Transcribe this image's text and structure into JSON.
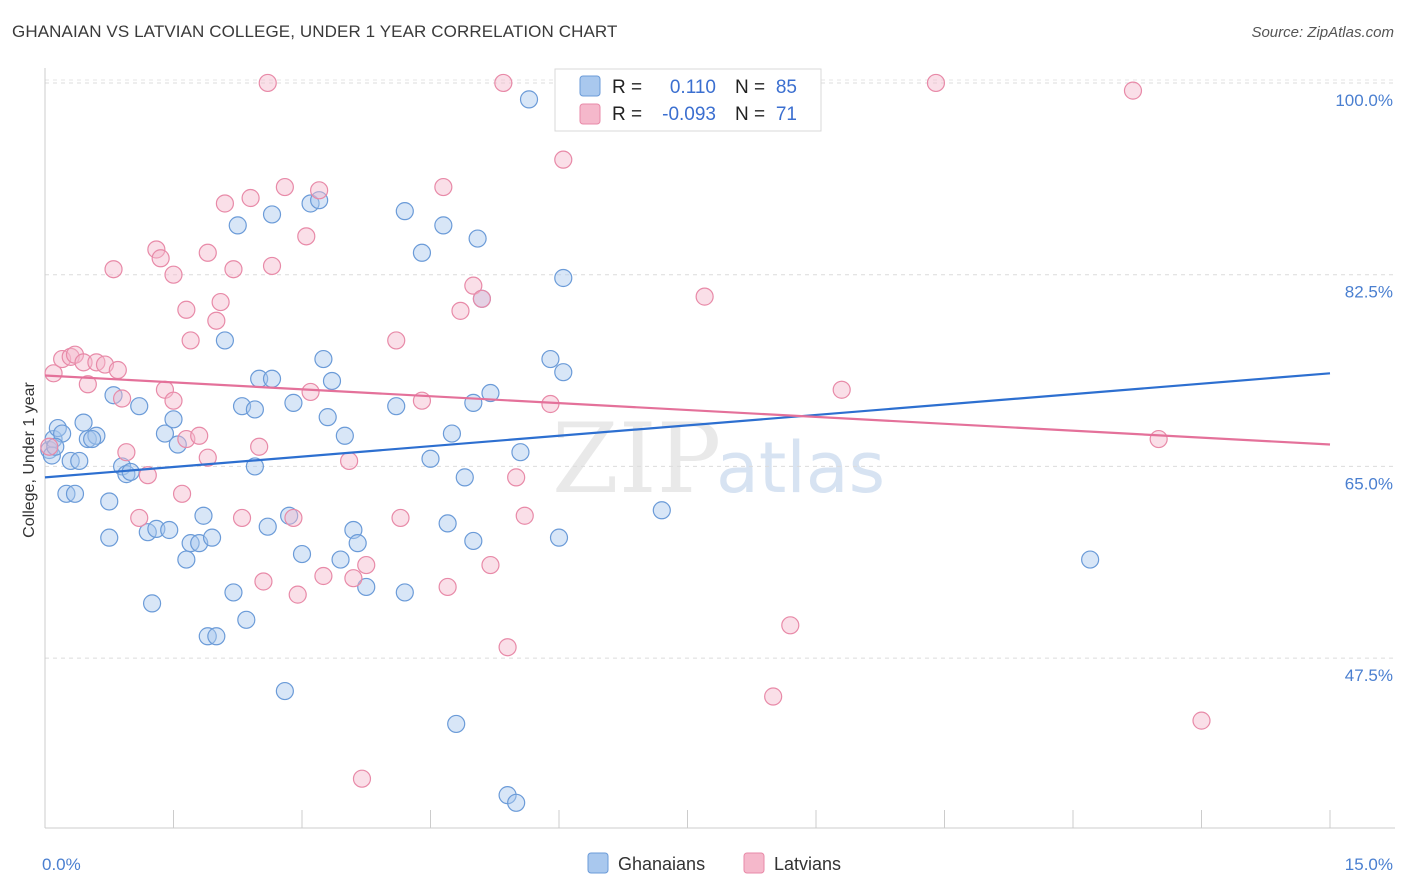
{
  "header": {
    "title": "GHANAIAN VS LATVIAN COLLEGE, UNDER 1 YEAR CORRELATION CHART",
    "source": "Source: ZipAtlas.com"
  },
  "legend_top": {
    "rows": [
      {
        "r_label": "R =",
        "r_value": "0.110",
        "n_label": "N =",
        "n_value": "85",
        "color": "#a9c8ee"
      },
      {
        "r_label": "R =",
        "r_value": "-0.093",
        "n_label": "N =",
        "n_value": "71",
        "color": "#f5b8cb"
      }
    ]
  },
  "legend_bottom": [
    {
      "label": "Ghanaians",
      "color": "#a9c8ee"
    },
    {
      "label": "Latvians",
      "color": "#f5b8cb"
    }
  ],
  "watermark": {
    "zip": "ZIP",
    "atlas": "atlas"
  },
  "chart_data": {
    "type": "scatter",
    "title": "GHANAIAN VS LATVIAN COLLEGE, UNDER 1 YEAR CORRELATION CHART",
    "xlabel": "",
    "ylabel": "College, Under 1 year",
    "xlim": [
      0,
      15
    ],
    "ylim": [
      32,
      101
    ],
    "x_ticks": [
      "0.0%",
      "15.0%"
    ],
    "y_ticks": [
      {
        "value": 47.5,
        "label": "47.5%"
      },
      {
        "value": 65.0,
        "label": "65.0%"
      },
      {
        "value": 82.5,
        "label": "82.5%"
      },
      {
        "value": 100.0,
        "label": "100.0%"
      }
    ],
    "grid": true,
    "legend_placement": "top-center",
    "series": [
      {
        "name": "Ghanaians",
        "color": "#a9c8ee",
        "stroke": "#6b9bd8",
        "trend": {
          "x": [
            0,
            15
          ],
          "y": [
            64.0,
            73.5
          ],
          "color": "#2d6fd0"
        },
        "points": [
          [
            0.05,
            66.5
          ],
          [
            0.1,
            67.5
          ],
          [
            0.15,
            68.5
          ],
          [
            0.2,
            68.0
          ],
          [
            0.25,
            62.5
          ],
          [
            0.3,
            65.5
          ],
          [
            0.4,
            65.5
          ],
          [
            0.45,
            69.0
          ],
          [
            0.5,
            67.5
          ],
          [
            0.6,
            67.8
          ],
          [
            0.75,
            61.8
          ],
          [
            0.8,
            71.5
          ],
          [
            0.9,
            65.0
          ],
          [
            0.95,
            64.3
          ],
          [
            0.75,
            58.5
          ],
          [
            1.1,
            70.5
          ],
          [
            1.2,
            59.0
          ],
          [
            1.25,
            52.5
          ],
          [
            1.3,
            59.3
          ],
          [
            1.4,
            68.0
          ],
          [
            1.45,
            59.2
          ],
          [
            1.5,
            69.3
          ],
          [
            1.55,
            67.0
          ],
          [
            1.65,
            56.5
          ],
          [
            1.7,
            58.0
          ],
          [
            1.8,
            58.0
          ],
          [
            1.85,
            60.5
          ],
          [
            1.9,
            49.5
          ],
          [
            1.95,
            58.5
          ],
          [
            2.0,
            49.5
          ],
          [
            2.1,
            76.5
          ],
          [
            2.2,
            53.5
          ],
          [
            2.25,
            87.0
          ],
          [
            2.3,
            70.5
          ],
          [
            2.35,
            51.0
          ],
          [
            2.45,
            70.2
          ],
          [
            2.45,
            65.0
          ],
          [
            2.5,
            73.0
          ],
          [
            2.6,
            59.5
          ],
          [
            2.65,
            73.0
          ],
          [
            2.65,
            88.0
          ],
          [
            2.8,
            44.5
          ],
          [
            2.85,
            60.5
          ],
          [
            2.9,
            70.8
          ],
          [
            3.0,
            57.0
          ],
          [
            3.1,
            89.0
          ],
          [
            3.2,
            89.3
          ],
          [
            3.25,
            74.8
          ],
          [
            3.3,
            69.5
          ],
          [
            3.35,
            72.8
          ],
          [
            3.45,
            56.5
          ],
          [
            3.5,
            67.8
          ],
          [
            3.6,
            59.2
          ],
          [
            3.65,
            58.0
          ],
          [
            3.75,
            54.0
          ],
          [
            4.1,
            70.5
          ],
          [
            4.2,
            88.3
          ],
          [
            4.2,
            53.5
          ],
          [
            4.4,
            84.5
          ],
          [
            4.5,
            65.7
          ],
          [
            4.65,
            87.0
          ],
          [
            4.7,
            59.8
          ],
          [
            4.75,
            68.0
          ],
          [
            4.8,
            41.5
          ],
          [
            4.9,
            64.0
          ],
          [
            5.0,
            58.2
          ],
          [
            5.0,
            70.8
          ],
          [
            5.05,
            85.8
          ],
          [
            5.1,
            80.3
          ],
          [
            5.2,
            71.7
          ],
          [
            5.4,
            35.0
          ],
          [
            5.5,
            34.3
          ],
          [
            5.55,
            66.3
          ],
          [
            5.65,
            98.5
          ],
          [
            5.9,
            74.8
          ],
          [
            6.0,
            58.5
          ],
          [
            6.05,
            73.6
          ],
          [
            6.05,
            82.2
          ],
          [
            7.2,
            61.0
          ],
          [
            12.2,
            56.5
          ],
          [
            0.08,
            66.0
          ],
          [
            0.12,
            66.8
          ],
          [
            0.35,
            62.5
          ],
          [
            1.0,
            64.5
          ],
          [
            0.55,
            67.5
          ]
        ]
      },
      {
        "name": "Latvians",
        "color": "#f5b8cb",
        "stroke": "#e88aa8",
        "trend": {
          "x": [
            0,
            15
          ],
          "y": [
            73.3,
            67.0
          ],
          "color": "#e4719a"
        },
        "points": [
          [
            0.05,
            66.8
          ],
          [
            0.1,
            73.5
          ],
          [
            0.2,
            74.8
          ],
          [
            0.3,
            75.0
          ],
          [
            0.35,
            75.2
          ],
          [
            0.45,
            74.5
          ],
          [
            0.5,
            72.5
          ],
          [
            0.6,
            74.5
          ],
          [
            0.7,
            74.3
          ],
          [
            0.8,
            83.0
          ],
          [
            0.85,
            73.8
          ],
          [
            0.9,
            71.2
          ],
          [
            0.95,
            66.3
          ],
          [
            1.1,
            60.3
          ],
          [
            1.2,
            64.2
          ],
          [
            1.3,
            84.8
          ],
          [
            1.35,
            84.0
          ],
          [
            1.4,
            72.0
          ],
          [
            1.5,
            82.5
          ],
          [
            1.5,
            71.0
          ],
          [
            1.6,
            62.5
          ],
          [
            1.65,
            67.5
          ],
          [
            1.65,
            79.3
          ],
          [
            1.7,
            76.5
          ],
          [
            1.8,
            67.8
          ],
          [
            1.9,
            65.8
          ],
          [
            1.9,
            84.5
          ],
          [
            2.0,
            78.3
          ],
          [
            2.05,
            80.0
          ],
          [
            2.1,
            89.0
          ],
          [
            2.2,
            83.0
          ],
          [
            2.3,
            60.3
          ],
          [
            2.4,
            89.5
          ],
          [
            2.5,
            66.8
          ],
          [
            2.55,
            54.5
          ],
          [
            2.65,
            83.3
          ],
          [
            2.8,
            90.5
          ],
          [
            2.9,
            60.3
          ],
          [
            2.95,
            53.3
          ],
          [
            3.05,
            86.0
          ],
          [
            3.1,
            71.8
          ],
          [
            3.2,
            90.2
          ],
          [
            3.25,
            55.0
          ],
          [
            3.55,
            65.5
          ],
          [
            3.6,
            54.8
          ],
          [
            3.7,
            36.5
          ],
          [
            3.75,
            56.0
          ],
          [
            4.1,
            76.5
          ],
          [
            4.15,
            60.3
          ],
          [
            4.4,
            71.0
          ],
          [
            4.65,
            90.5
          ],
          [
            4.7,
            54.0
          ],
          [
            4.85,
            79.2
          ],
          [
            5.0,
            81.5
          ],
          [
            5.1,
            80.3
          ],
          [
            5.2,
            56.0
          ],
          [
            5.35,
            100.0
          ],
          [
            5.4,
            48.5
          ],
          [
            5.5,
            64.0
          ],
          [
            5.6,
            60.5
          ],
          [
            5.9,
            70.7
          ],
          [
            6.05,
            93.0
          ],
          [
            7.7,
            80.5
          ],
          [
            8.5,
            44.0
          ],
          [
            8.7,
            50.5
          ],
          [
            9.3,
            72.0
          ],
          [
            10.4,
            100.0
          ],
          [
            12.7,
            99.3
          ],
          [
            13.0,
            67.5
          ],
          [
            13.5,
            41.8
          ],
          [
            2.6,
            100.0
          ]
        ]
      }
    ]
  }
}
